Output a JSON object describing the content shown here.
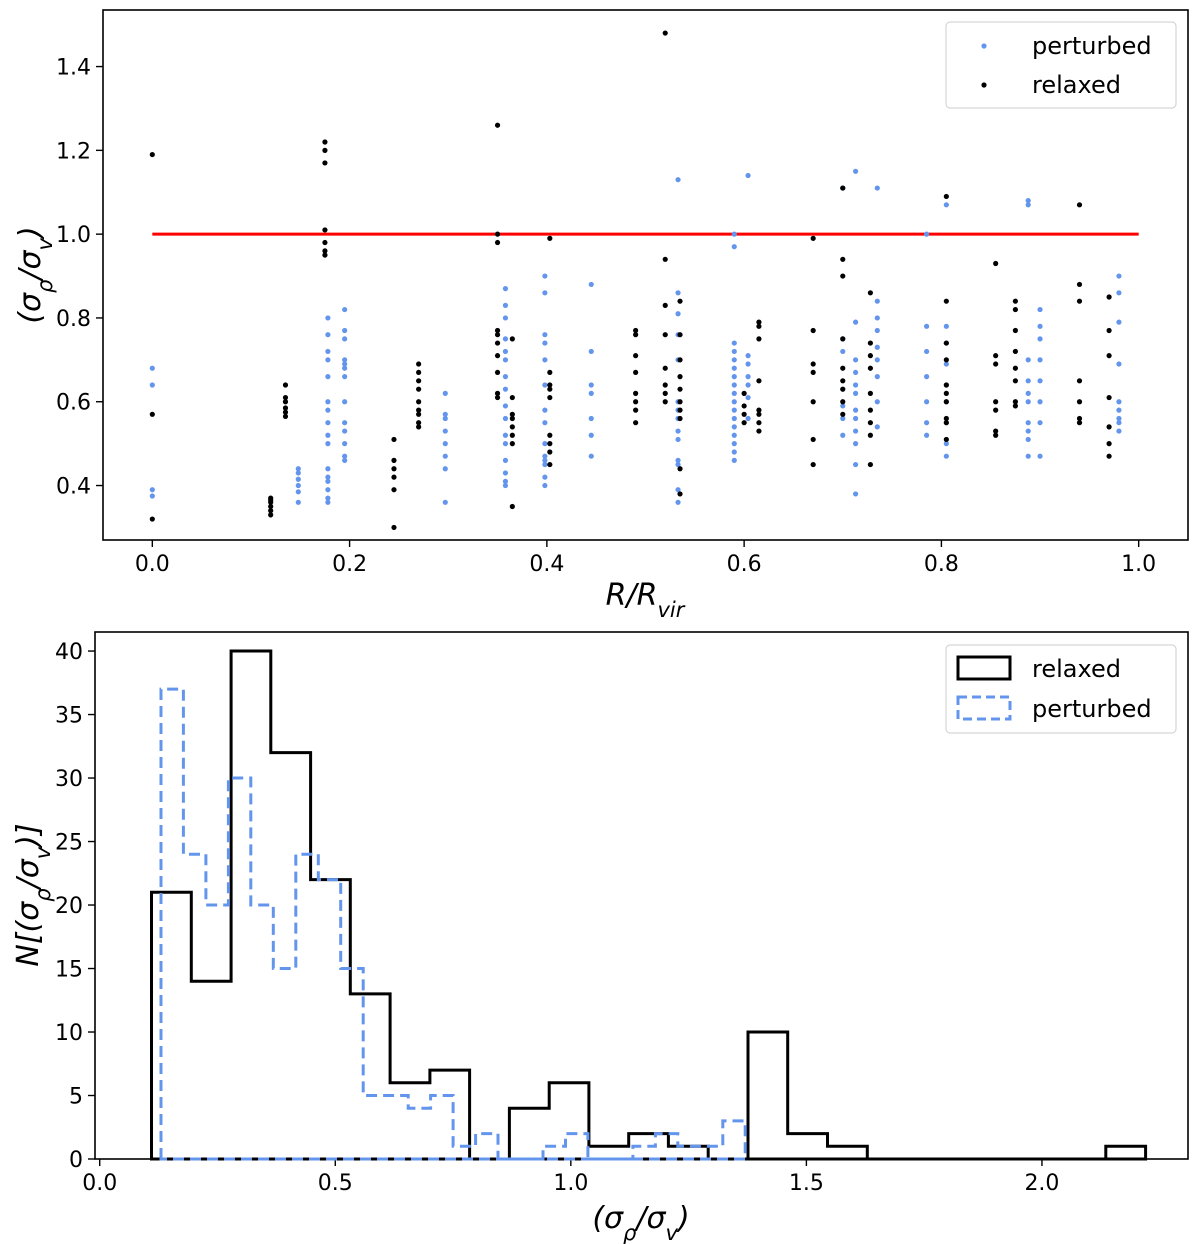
{
  "colors": {
    "perturbed": "#6495ed",
    "relaxed": "#000000",
    "reference_line": "#ff0000"
  },
  "chart_data": [
    {
      "type": "scatter",
      "xlabel": "R/R_vir",
      "ylabel": "(σ_ρ/σ_v)",
      "xlim": [
        -0.05,
        1.05
      ],
      "ylim": [
        0.27,
        1.535
      ],
      "xticks": [
        "0.0",
        "0.2",
        "0.4",
        "0.6",
        "0.8",
        "1.0"
      ],
      "yticks": [
        "0.4",
        "0.6",
        "0.8",
        "1.0",
        "1.2",
        "1.4"
      ],
      "legend": {
        "placement": "top-right",
        "entries": [
          "perturbed",
          "relaxed"
        ]
      },
      "reference_line": {
        "y": 1.0,
        "x": [
          0.0,
          1.0
        ]
      },
      "series": [
        {
          "name": "perturbed",
          "x": [
            0.0,
            0.0,
            0.0,
            0.0,
            0.148,
            0.148,
            0.148,
            0.148,
            0.148,
            0.148,
            0.178,
            0.178,
            0.178,
            0.178,
            0.178,
            0.178,
            0.178,
            0.178,
            0.178,
            0.178,
            0.178,
            0.178,
            0.178,
            0.178,
            0.178,
            0.178,
            0.195,
            0.195,
            0.195,
            0.195,
            0.195,
            0.195,
            0.195,
            0.195,
            0.195,
            0.195,
            0.195,
            0.195,
            0.195,
            0.297,
            0.297,
            0.297,
            0.297,
            0.297,
            0.297,
            0.297,
            0.297,
            0.358,
            0.358,
            0.358,
            0.358,
            0.358,
            0.358,
            0.358,
            0.358,
            0.358,
            0.358,
            0.358,
            0.358,
            0.358,
            0.358,
            0.358,
            0.358,
            0.398,
            0.398,
            0.398,
            0.398,
            0.398,
            0.398,
            0.398,
            0.398,
            0.398,
            0.398,
            0.398,
            0.398,
            0.398,
            0.398,
            0.445,
            0.445,
            0.445,
            0.445,
            0.445,
            0.445,
            0.445,
            0.533,
            0.533,
            0.533,
            0.533,
            0.533,
            0.533,
            0.533,
            0.533,
            0.533,
            0.533,
            0.533,
            0.533,
            0.533,
            0.533,
            0.59,
            0.59,
            0.59,
            0.59,
            0.59,
            0.59,
            0.59,
            0.59,
            0.59,
            0.59,
            0.59,
            0.59,
            0.59,
            0.59,
            0.59,
            0.59,
            0.59,
            0.604,
            0.604,
            0.604,
            0.604,
            0.604,
            0.604,
            0.604,
            0.7,
            0.7,
            0.7,
            0.7,
            0.7,
            0.7,
            0.7,
            0.713,
            0.713,
            0.713,
            0.713,
            0.713,
            0.713,
            0.713,
            0.713,
            0.713,
            0.713,
            0.713,
            0.713,
            0.735,
            0.735,
            0.735,
            0.735,
            0.735,
            0.735,
            0.735,
            0.735,
            0.735,
            0.785,
            0.785,
            0.785,
            0.785,
            0.785,
            0.785,
            0.785,
            0.805,
            0.805,
            0.805,
            0.805,
            0.805,
            0.805,
            0.805,
            0.805,
            0.805,
            0.888,
            0.888,
            0.888,
            0.888,
            0.888,
            0.888,
            0.888,
            0.888,
            0.888,
            0.888,
            0.9,
            0.9,
            0.9,
            0.9,
            0.9,
            0.9,
            0.9,
            0.9,
            0.98,
            0.98,
            0.98,
            0.98,
            0.98,
            0.98,
            0.98,
            0.98,
            0.98
          ],
          "y": [
            0.68,
            0.64,
            0.39,
            0.375,
            0.44,
            0.43,
            0.415,
            0.4,
            0.385,
            0.36,
            0.8,
            0.76,
            0.72,
            0.7,
            0.66,
            0.6,
            0.58,
            0.55,
            0.52,
            0.5,
            0.44,
            0.42,
            0.41,
            0.39,
            0.37,
            0.36,
            0.82,
            0.77,
            0.75,
            0.7,
            0.69,
            0.68,
            0.66,
            0.6,
            0.55,
            0.53,
            0.5,
            0.47,
            0.46,
            0.62,
            0.57,
            0.56,
            0.53,
            0.5,
            0.47,
            0.44,
            0.36,
            0.87,
            0.83,
            0.8,
            0.75,
            0.72,
            0.7,
            0.66,
            0.63,
            0.59,
            0.56,
            0.52,
            0.5,
            0.46,
            0.43,
            0.41,
            0.4,
            0.9,
            0.86,
            0.76,
            0.74,
            0.7,
            0.64,
            0.58,
            0.55,
            0.5,
            0.47,
            0.46,
            0.45,
            0.42,
            0.4,
            0.88,
            0.72,
            0.64,
            0.62,
            0.56,
            0.52,
            0.47,
            1.13,
            0.86,
            0.81,
            0.76,
            0.7,
            0.6,
            0.58,
            0.56,
            0.53,
            0.51,
            0.46,
            0.45,
            0.39,
            0.36,
            1.0,
            0.97,
            0.74,
            0.72,
            0.7,
            0.68,
            0.66,
            0.64,
            0.62,
            0.6,
            0.58,
            0.56,
            0.54,
            0.52,
            0.5,
            0.48,
            0.46,
            1.14,
            0.71,
            0.69,
            0.66,
            0.64,
            0.61,
            0.56,
            1.11,
            0.75,
            0.72,
            0.63,
            0.59,
            0.56,
            0.52,
            1.15,
            0.79,
            0.7,
            0.67,
            0.64,
            0.62,
            0.58,
            0.56,
            0.53,
            0.5,
            0.45,
            0.38,
            1.11,
            0.84,
            0.8,
            0.77,
            0.73,
            0.7,
            0.66,
            0.6,
            0.54,
            1.0,
            0.78,
            0.72,
            0.66,
            0.6,
            0.55,
            0.52,
            1.07,
            0.78,
            0.74,
            0.69,
            0.64,
            0.6,
            0.55,
            0.5,
            0.47,
            1.08,
            1.07,
            0.7,
            0.65,
            0.62,
            0.6,
            0.55,
            0.53,
            0.51,
            0.47,
            0.82,
            0.78,
            0.75,
            0.7,
            0.65,
            0.6,
            0.55,
            0.47,
            0.9,
            0.86,
            0.79,
            0.69,
            0.6,
            0.58,
            0.56,
            0.55,
            0.53
          ]
        },
        {
          "name": "relaxed",
          "x": [
            0.0,
            0.0,
            0.0,
            0.12,
            0.12,
            0.12,
            0.12,
            0.12,
            0.12,
            0.135,
            0.135,
            0.135,
            0.135,
            0.135,
            0.135,
            0.175,
            0.175,
            0.175,
            0.175,
            0.175,
            0.175,
            0.175,
            0.245,
            0.245,
            0.245,
            0.245,
            0.245,
            0.245,
            0.27,
            0.27,
            0.27,
            0.27,
            0.27,
            0.27,
            0.27,
            0.27,
            0.27,
            0.35,
            0.35,
            0.35,
            0.35,
            0.35,
            0.35,
            0.35,
            0.35,
            0.35,
            0.35,
            0.365,
            0.365,
            0.365,
            0.365,
            0.365,
            0.365,
            0.365,
            0.365,
            0.403,
            0.403,
            0.403,
            0.403,
            0.403,
            0.403,
            0.403,
            0.403,
            0.403,
            0.49,
            0.49,
            0.49,
            0.49,
            0.49,
            0.49,
            0.49,
            0.49,
            0.52,
            0.52,
            0.52,
            0.52,
            0.52,
            0.52,
            0.52,
            0.52,
            0.535,
            0.535,
            0.535,
            0.535,
            0.535,
            0.535,
            0.535,
            0.535,
            0.535,
            0.535,
            0.6,
            0.6,
            0.6,
            0.6,
            0.615,
            0.615,
            0.615,
            0.615,
            0.615,
            0.615,
            0.615,
            0.615,
            0.67,
            0.67,
            0.67,
            0.67,
            0.67,
            0.67,
            0.67,
            0.7,
            0.7,
            0.7,
            0.7,
            0.7,
            0.7,
            0.7,
            0.7,
            0.7,
            0.728,
            0.728,
            0.728,
            0.728,
            0.728,
            0.728,
            0.728,
            0.728,
            0.728,
            0.805,
            0.805,
            0.805,
            0.805,
            0.805,
            0.805,
            0.805,
            0.805,
            0.805,
            0.805,
            0.855,
            0.855,
            0.855,
            0.855,
            0.855,
            0.855,
            0.855,
            0.875,
            0.875,
            0.875,
            0.875,
            0.875,
            0.875,
            0.875,
            0.875,
            0.94,
            0.94,
            0.94,
            0.94,
            0.94,
            0.94,
            0.94,
            0.97,
            0.97,
            0.97,
            0.97,
            0.97,
            0.97,
            0.97
          ],
          "y": [
            1.19,
            0.57,
            0.32,
            0.37,
            0.365,
            0.36,
            0.35,
            0.34,
            0.33,
            0.64,
            0.61,
            0.6,
            0.585,
            0.575,
            0.565,
            1.22,
            1.2,
            1.17,
            1.01,
            0.98,
            0.96,
            0.95,
            0.51,
            0.46,
            0.44,
            0.42,
            0.39,
            0.3,
            0.69,
            0.67,
            0.65,
            0.63,
            0.6,
            0.58,
            0.57,
            0.55,
            0.54,
            1.26,
            1.0,
            0.98,
            0.77,
            0.76,
            0.74,
            0.71,
            0.67,
            0.62,
            0.61,
            0.75,
            0.61,
            0.57,
            0.56,
            0.54,
            0.52,
            0.5,
            0.35,
            0.99,
            0.67,
            0.64,
            0.63,
            0.61,
            0.52,
            0.5,
            0.48,
            0.45,
            0.77,
            0.76,
            0.71,
            0.67,
            0.62,
            0.6,
            0.58,
            0.55,
            1.48,
            0.94,
            0.83,
            0.76,
            0.68,
            0.64,
            0.62,
            0.6,
            0.84,
            0.76,
            0.7,
            0.66,
            0.63,
            0.6,
            0.58,
            0.56,
            0.44,
            0.38,
            0.62,
            0.59,
            0.57,
            0.55,
            0.79,
            0.78,
            0.75,
            0.65,
            0.58,
            0.57,
            0.55,
            0.53,
            0.99,
            0.77,
            0.69,
            0.67,
            0.6,
            0.51,
            0.45,
            1.11,
            0.94,
            0.9,
            0.75,
            0.68,
            0.65,
            0.63,
            0.6,
            0.57,
            0.86,
            0.74,
            0.71,
            0.68,
            0.62,
            0.58,
            0.55,
            0.52,
            0.45,
            1.09,
            0.84,
            0.74,
            0.7,
            0.64,
            0.62,
            0.6,
            0.56,
            0.55,
            0.51,
            0.93,
            0.71,
            0.69,
            0.6,
            0.58,
            0.53,
            0.52,
            0.84,
            0.82,
            0.77,
            0.72,
            0.68,
            0.65,
            0.6,
            0.59,
            1.07,
            0.88,
            0.84,
            0.65,
            0.6,
            0.56,
            0.55,
            0.85,
            0.77,
            0.71,
            0.61,
            0.54,
            0.5,
            0.47
          ]
        }
      ]
    },
    {
      "type": "histogram",
      "xlabel": "(σ_ρ/σ_v)",
      "ylabel": "N[(σ_ρ/σ_v)]",
      "xlim": [
        -0.01,
        2.31
      ],
      "ylim": [
        0,
        41.5
      ],
      "xticks": [
        "0.0",
        "0.5",
        "1.0",
        "1.5",
        "2.0"
      ],
      "yticks": [
        "0",
        "5",
        "10",
        "15",
        "20",
        "25",
        "30",
        "35",
        "40"
      ],
      "legend": {
        "placement": "top-right",
        "entries": [
          "relaxed",
          "perturbed"
        ]
      },
      "series": [
        {
          "name": "relaxed",
          "style": "solid",
          "bin_start": 0.11,
          "bin_width": 0.0844,
          "counts": [
            21,
            14,
            40,
            32,
            22,
            13,
            6,
            7,
            0,
            4,
            6,
            1,
            2,
            1,
            0,
            10,
            2,
            1,
            0,
            0,
            0,
            0,
            0,
            0,
            1
          ]
        },
        {
          "name": "perturbed",
          "style": "dashed",
          "bin_start": 0.13,
          "bin_width": 0.0477,
          "counts": [
            37,
            24,
            20,
            30,
            20,
            15,
            24,
            22,
            15,
            5,
            5,
            4,
            5,
            1,
            2,
            0,
            0,
            1,
            2,
            0,
            0,
            1,
            2,
            1,
            1,
            3
          ]
        }
      ]
    }
  ]
}
